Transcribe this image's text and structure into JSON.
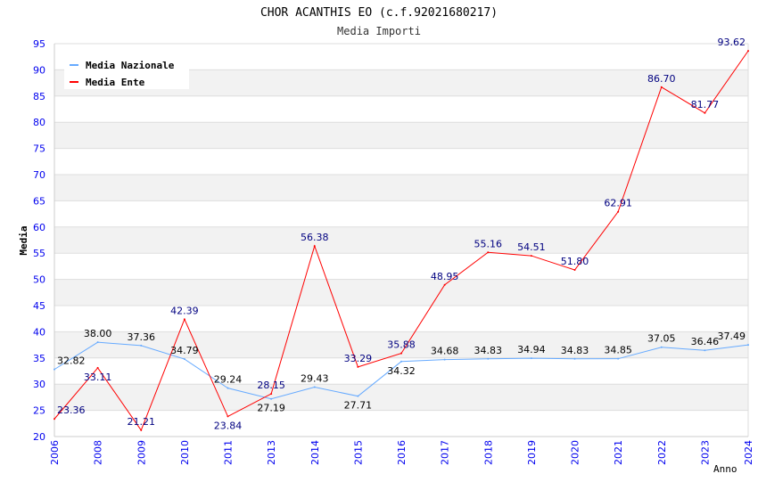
{
  "chart_data": {
    "type": "line",
    "title": "CHOR ACANTHIS EO (c.f.92021680217)",
    "subtitle": "Media Importi",
    "xlabel": "Anno",
    "ylabel": "Media",
    "ylim": [
      20,
      95
    ],
    "yticks": [
      20,
      25,
      30,
      35,
      40,
      45,
      50,
      55,
      60,
      65,
      70,
      75,
      80,
      85,
      90,
      95
    ],
    "categories": [
      "2006",
      "2008",
      "2009",
      "2010",
      "2011",
      "2013",
      "2014",
      "2015",
      "2016",
      "2017",
      "2018",
      "2019",
      "2020",
      "2021",
      "2022",
      "2023",
      "2024"
    ],
    "legend_position": "top-right",
    "series": [
      {
        "name": "Media Nazionale",
        "color": "#66aaff",
        "label_color": "#000000",
        "values": [
          32.82,
          38.0,
          37.36,
          34.79,
          29.24,
          27.19,
          29.43,
          27.71,
          34.32,
          34.68,
          34.83,
          34.94,
          34.83,
          34.85,
          37.05,
          36.46,
          37.49
        ]
      },
      {
        "name": "Media Ente",
        "color": "#ff0000",
        "label_color": "#000080",
        "values": [
          23.36,
          33.11,
          21.21,
          42.39,
          23.84,
          28.15,
          56.38,
          33.29,
          35.88,
          48.95,
          55.16,
          54.51,
          51.8,
          62.91,
          86.7,
          81.77,
          93.62
        ]
      }
    ]
  }
}
